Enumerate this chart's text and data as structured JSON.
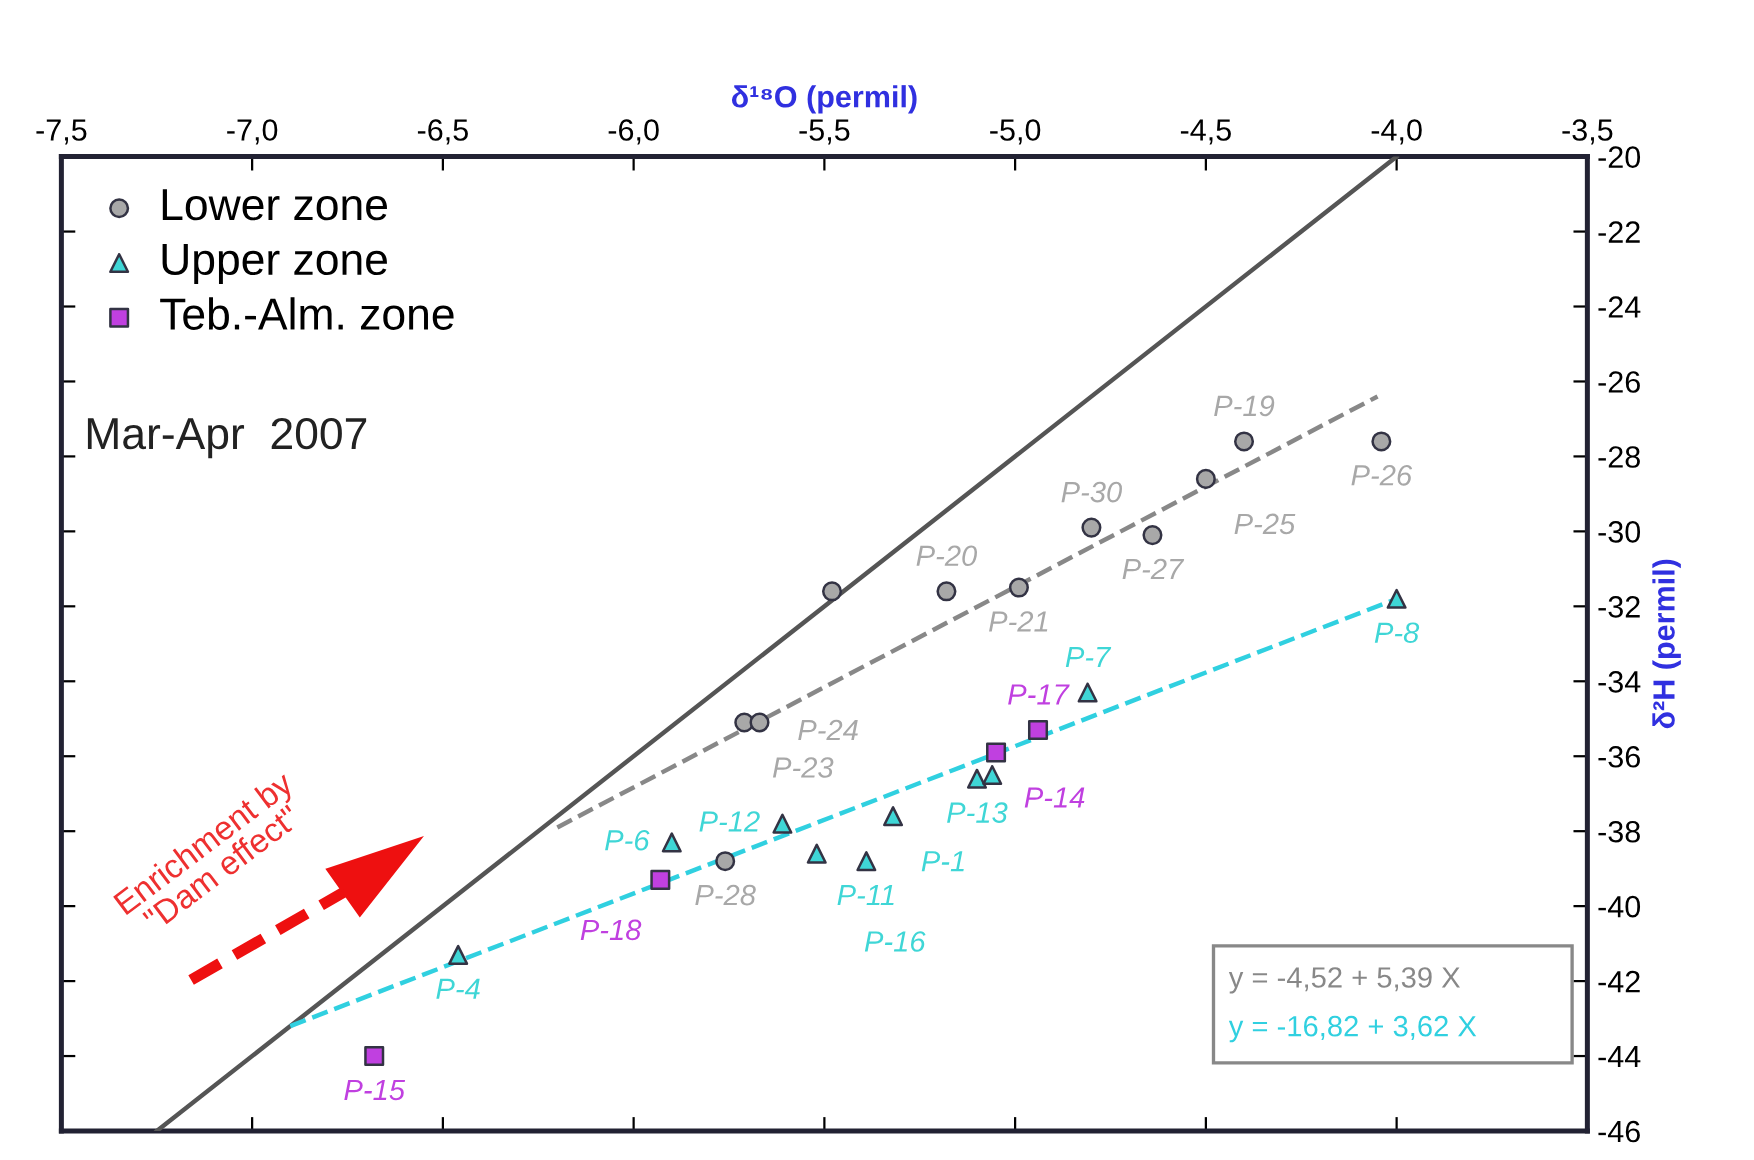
{
  "chart_data": {
    "type": "scatter",
    "xlabel": "δ¹⁸O (permil)",
    "ylabel": "δ²H (permil)",
    "xlim": [
      -7.5,
      -3.5
    ],
    "ylim": [
      -46,
      -20
    ],
    "xticks": [
      {
        "value": -7.5,
        "label": "-7,5"
      },
      {
        "value": -7.0,
        "label": "-7,0"
      },
      {
        "value": -6.5,
        "label": "-6,5"
      },
      {
        "value": -6.0,
        "label": "-6,0"
      },
      {
        "value": -5.5,
        "label": "-5,5"
      },
      {
        "value": -5.0,
        "label": "-5,0"
      },
      {
        "value": -4.5,
        "label": "-4,5"
      },
      {
        "value": -4.0,
        "label": "-4,0"
      },
      {
        "value": -3.5,
        "label": "-3,5"
      }
    ],
    "yticks": [
      -20,
      -22,
      -24,
      -26,
      -28,
      -30,
      -32,
      -34,
      -36,
      -38,
      -40,
      -42,
      -44,
      -46
    ],
    "legend": "top left",
    "grid": false,
    "series": [
      {
        "name": "Lower zone",
        "marker": "circle",
        "color": "#a8a8a8",
        "x": [
          -4.4,
          -4.04,
          -4.5,
          -4.8,
          -4.64,
          -5.18,
          -4.99,
          -5.48,
          -5.71,
          -5.67,
          -5.76
        ],
        "values": [
          -27.6,
          -27.6,
          -28.6,
          -29.9,
          -30.1,
          -31.6,
          -31.5,
          -31.6,
          -35.1,
          -35.1,
          -38.8
        ],
        "value_labels": [
          "P-19",
          "P-26",
          "P-25",
          "P-30",
          "P-27",
          "P-20",
          "P-21",
          null,
          "P-23",
          "P-24",
          "P-28"
        ]
      },
      {
        "name": "Upper zone",
        "marker": "triangle",
        "color": "#3fd6d6",
        "x": [
          -4.0,
          -4.81,
          -5.1,
          -5.06,
          -5.32,
          -5.39,
          -5.52,
          -5.61,
          -5.9,
          -6.46
        ],
        "values": [
          -31.8,
          -34.3,
          -36.6,
          -36.5,
          -37.6,
          -38.8,
          -38.6,
          -37.8,
          -38.3,
          -41.3
        ],
        "value_labels": [
          "P-8",
          "P-7",
          "P-13",
          null,
          "P-1",
          "P-11",
          "P-16",
          "P-12",
          "P-6",
          "P-4"
        ]
      },
      {
        "name": "Teb.-Alm. zone",
        "marker": "square",
        "color": "#c040e0",
        "x": [
          -4.94,
          -5.05,
          -5.93,
          -6.68
        ],
        "values": [
          -35.3,
          -35.9,
          -39.3,
          -44.0
        ],
        "value_labels": [
          "P-17",
          "P-14",
          "P-18",
          "P-15"
        ]
      },
      {
        "type": "line",
        "line_style": "solid",
        "color": "#555555",
        "x": [
          -7.25,
          -4.0
        ],
        "values": [
          -46,
          -20
        ]
      },
      {
        "type": "line",
        "line_style": "dashed",
        "color": "#888888",
        "x": [
          -6.2,
          -4.05
        ],
        "values": [
          -37.9,
          -26.4
        ]
      },
      {
        "type": "line",
        "line_style": "dashed",
        "color": "#30d0e0",
        "x": [
          -6.9,
          -4.0
        ],
        "values": [
          -43.2,
          -31.8
        ]
      }
    ],
    "annotations": [
      "Mar-Apr  2007",
      "Enrichment by \"Dam effect\"",
      "y = -4,52 + 5,39 X",
      "y = -16,82 + 3,62 X"
    ]
  }
}
